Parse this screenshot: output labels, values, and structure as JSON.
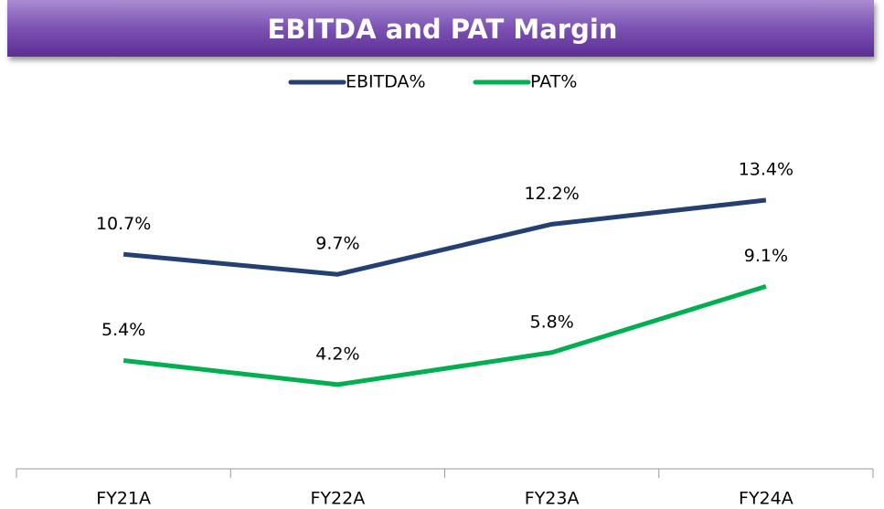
{
  "chart_data": {
    "type": "line",
    "title": "EBITDA and PAT  Margin",
    "categories": [
      "FY21A",
      "FY22A",
      "FY23A",
      "FY24A"
    ],
    "series": [
      {
        "name": "EBITDA%",
        "color": "#243f72",
        "values": [
          10.7,
          9.7,
          12.2,
          13.4
        ],
        "value_labels": [
          "10.7%",
          "9.7%",
          "12.2%",
          "13.4%"
        ]
      },
      {
        "name": "PAT%",
        "color": "#00b050",
        "values": [
          5.4,
          4.2,
          5.8,
          9.1
        ],
        "value_labels": [
          "5.4%",
          "4.2%",
          "5.8%",
          "9.1%"
        ]
      }
    ],
    "ylim": [
      0,
      16
    ],
    "legend": "top"
  }
}
